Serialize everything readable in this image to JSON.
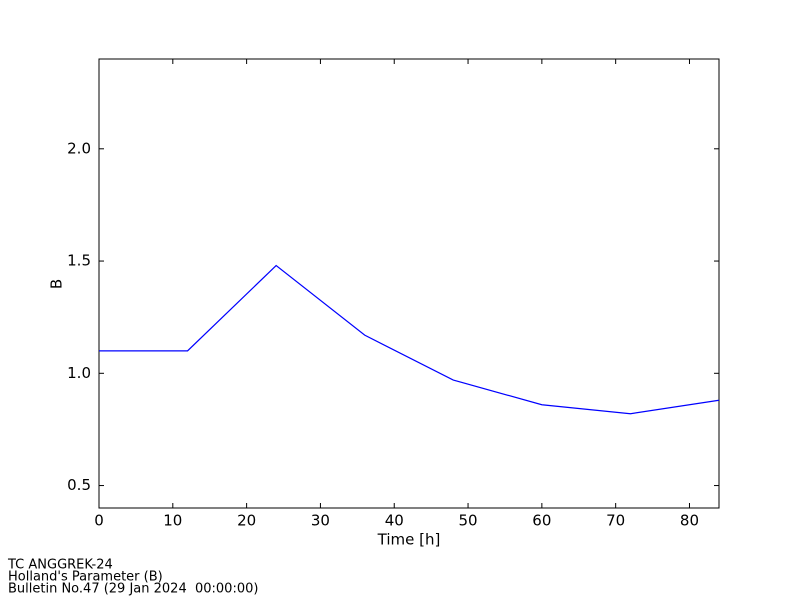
{
  "chart_data": {
    "type": "line",
    "x": [
      0,
      12,
      24,
      36,
      48,
      60,
      72,
      84
    ],
    "series": [
      {
        "name": "B",
        "color": "#0000ff",
        "values": [
          1.1,
          1.1,
          1.48,
          1.17,
          0.97,
          0.86,
          0.82,
          0.88
        ]
      }
    ],
    "xlim": [
      0,
      84
    ],
    "ylim": [
      0.4,
      2.4
    ],
    "xticks": [
      0,
      10,
      20,
      30,
      40,
      50,
      60,
      70,
      80
    ],
    "yticks": [
      0.5,
      {
        "value": 1,
        "label": "1.0"
      },
      1.5,
      {
        "value": 2,
        "label": "2.0"
      }
    ],
    "xlabel": "Time [h]",
    "ylabel": "B",
    "grid": false
  },
  "footer": [
    "TC ANGGREK-24",
    "Holland's Parameter (B)",
    "Bulletin No.47 (29 Jan 2024  00:00:00)"
  ]
}
